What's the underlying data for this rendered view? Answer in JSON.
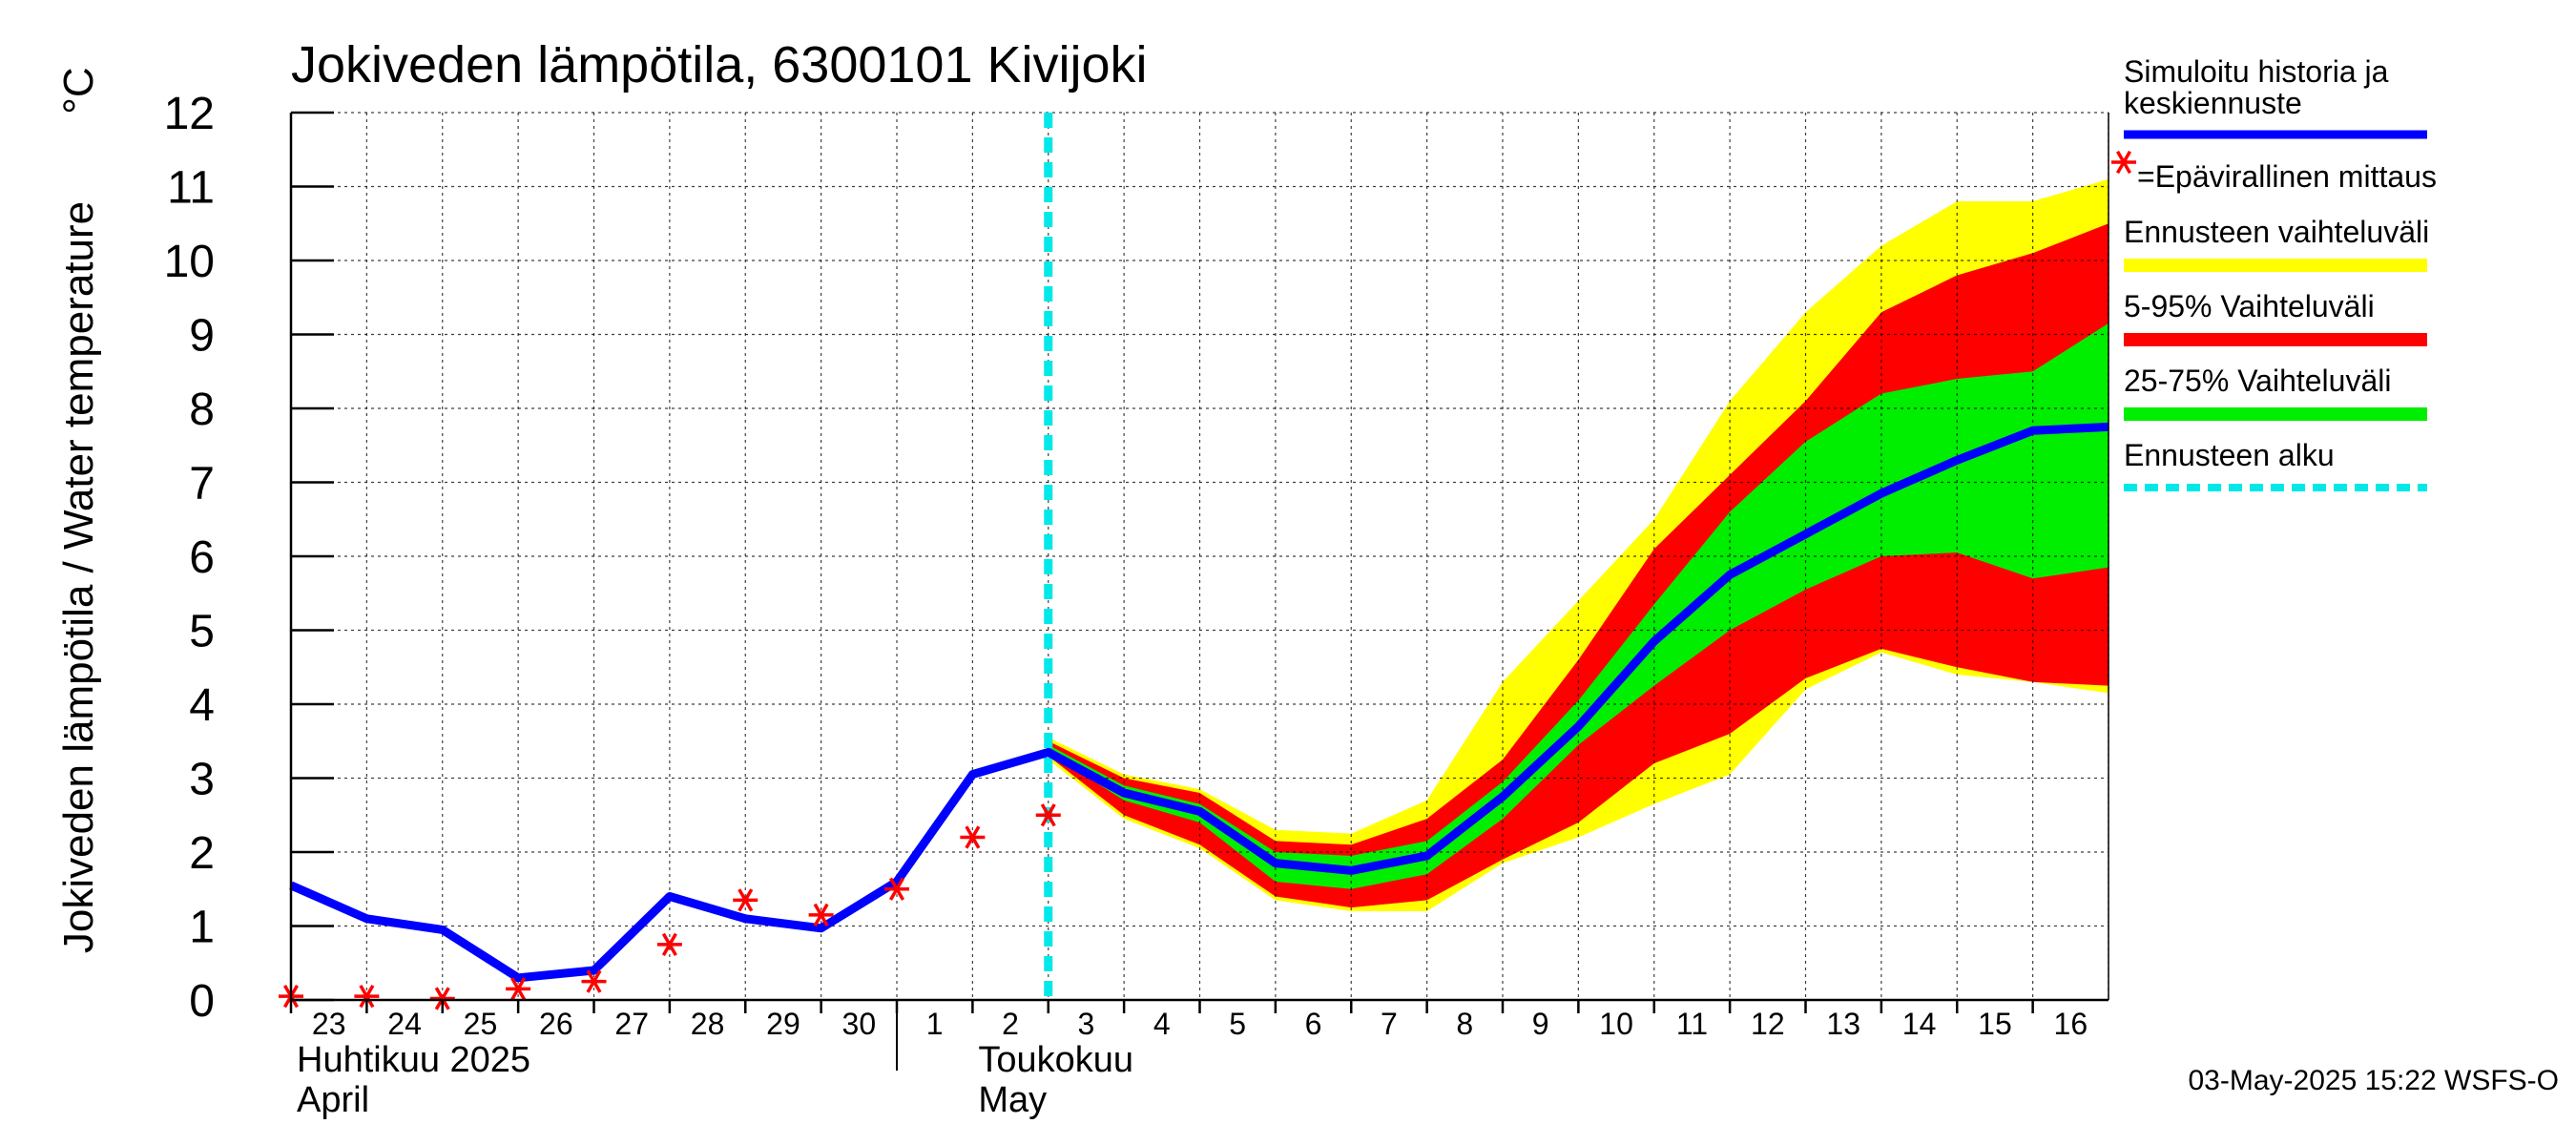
{
  "chart_data": {
    "type": "line",
    "title": "Jokiveden lämpötila, 6300101 Kivijoki",
    "ylabel": "Jokiveden lämpötila / Water temperature",
    "yunit": "°C",
    "ylim": [
      0,
      12
    ],
    "yticks": [
      "0",
      "1",
      "2",
      "3",
      "4",
      "5",
      "6",
      "7",
      "8",
      "9",
      "10",
      "11",
      "12"
    ],
    "xlim": [
      0,
      24
    ],
    "xticks": [
      {
        "x": 0,
        "label": "23"
      },
      {
        "x": 1,
        "label": "24"
      },
      {
        "x": 2,
        "label": "25"
      },
      {
        "x": 3,
        "label": "26"
      },
      {
        "x": 4,
        "label": "27"
      },
      {
        "x": 5,
        "label": "28"
      },
      {
        "x": 6,
        "label": "29"
      },
      {
        "x": 7,
        "label": "30"
      },
      {
        "x": 8,
        "label": "1"
      },
      {
        "x": 9,
        "label": "2"
      },
      {
        "x": 10,
        "label": "3"
      },
      {
        "x": 11,
        "label": "4"
      },
      {
        "x": 12,
        "label": "5"
      },
      {
        "x": 13,
        "label": "6"
      },
      {
        "x": 14,
        "label": "7"
      },
      {
        "x": 15,
        "label": "8"
      },
      {
        "x": 16,
        "label": "9"
      },
      {
        "x": 17,
        "label": "10"
      },
      {
        "x": 18,
        "label": "11"
      },
      {
        "x": 19,
        "label": "12"
      },
      {
        "x": 20,
        "label": "13"
      },
      {
        "x": 21,
        "label": "14"
      },
      {
        "x": 22,
        "label": "15"
      },
      {
        "x": 23,
        "label": "16"
      }
    ],
    "month_labels": [
      {
        "x": 0,
        "line1": "Huhtikuu  2025",
        "line2": "April"
      },
      {
        "x": 9,
        "line1": "Toukokuu",
        "line2": "May"
      }
    ],
    "month_separator_x": 8,
    "grid": true,
    "forecast_start_x": 10,
    "series": [
      {
        "name": "yellow_band",
        "kind": "band",
        "color": "#ffff00",
        "x": [
          10,
          11,
          12,
          13,
          14,
          15,
          16,
          17,
          18,
          19,
          20,
          21,
          22,
          23,
          24
        ],
        "upper": [
          3.55,
          3.05,
          2.85,
          2.3,
          2.25,
          2.7,
          4.3,
          5.4,
          6.5,
          8.1,
          9.3,
          10.2,
          10.8,
          10.8,
          11.1
        ],
        "lower": [
          3.25,
          2.45,
          2.05,
          1.35,
          1.2,
          1.2,
          1.85,
          2.2,
          2.65,
          3.05,
          4.2,
          4.7,
          4.4,
          4.3,
          4.15
        ]
      },
      {
        "name": "red_band",
        "kind": "band",
        "color": "#ff0000",
        "x": [
          10,
          11,
          12,
          13,
          14,
          15,
          16,
          17,
          18,
          19,
          20,
          21,
          22,
          23,
          24
        ],
        "upper": [
          3.5,
          3.0,
          2.8,
          2.15,
          2.1,
          2.45,
          3.25,
          4.6,
          6.1,
          7.1,
          8.1,
          9.3,
          9.8,
          10.1,
          10.5
        ],
        "lower": [
          3.3,
          2.5,
          2.1,
          1.4,
          1.25,
          1.35,
          1.9,
          2.4,
          3.2,
          3.6,
          4.35,
          4.75,
          4.5,
          4.3,
          4.25
        ]
      },
      {
        "name": "green_band",
        "kind": "band",
        "color": "#00ee00",
        "x": [
          10,
          11,
          12,
          13,
          14,
          15,
          16,
          17,
          18,
          19,
          20,
          21,
          22,
          23,
          24
        ],
        "upper": [
          3.45,
          2.9,
          2.65,
          2.0,
          1.95,
          2.15,
          2.95,
          4.05,
          5.35,
          6.6,
          7.55,
          8.2,
          8.4,
          8.5,
          9.15
        ],
        "lower": [
          3.35,
          2.7,
          2.4,
          1.6,
          1.5,
          1.7,
          2.45,
          3.45,
          4.25,
          5.0,
          5.55,
          6.0,
          6.05,
          5.7,
          5.85
        ]
      },
      {
        "name": "Simuloitu historia ja keskiennuste",
        "kind": "line",
        "color": "#0000ff",
        "x": [
          0,
          1,
          2,
          3,
          4,
          5,
          6,
          7,
          8,
          9,
          10,
          11,
          12,
          13,
          14,
          15,
          16,
          17,
          18,
          19,
          20,
          21,
          22,
          23,
          24
        ],
        "values": [
          1.55,
          1.1,
          0.95,
          0.3,
          0.4,
          1.4,
          1.1,
          0.97,
          1.6,
          3.05,
          3.35,
          2.8,
          2.55,
          1.85,
          1.75,
          1.95,
          2.75,
          3.7,
          4.85,
          5.75,
          6.3,
          6.85,
          7.3,
          7.7,
          7.75
        ]
      },
      {
        "name": "Epävirallinen mittaus",
        "kind": "points",
        "color": "#ff0000",
        "x": [
          0,
          1,
          2,
          3,
          4,
          5,
          6,
          7,
          8,
          9,
          10
        ],
        "values": [
          0.05,
          0.05,
          0.02,
          0.15,
          0.25,
          0.75,
          1.35,
          1.15,
          1.5,
          2.2,
          2.5
        ]
      }
    ],
    "legend": [
      {
        "label": "Simuloitu historia ja keskiennuste",
        "swatch": "line",
        "color": "#0000ff"
      },
      {
        "label": "=Epävirallinen mittaus",
        "swatch": "star",
        "color": "#ff0000"
      },
      {
        "label": "Ennusteen vaihteluväli",
        "swatch": "bar",
        "color": "#ffff00"
      },
      {
        "label": "5-95% Vaihteluväli",
        "swatch": "bar",
        "color": "#ff0000"
      },
      {
        "label": "25-75% Vaihteluväli",
        "swatch": "bar",
        "color": "#00ee00"
      },
      {
        "label": "Ennusteen alku",
        "swatch": "dashed",
        "color": "#00e8e8"
      }
    ],
    "footer": "03-May-2025 15:22 WSFS-O"
  }
}
